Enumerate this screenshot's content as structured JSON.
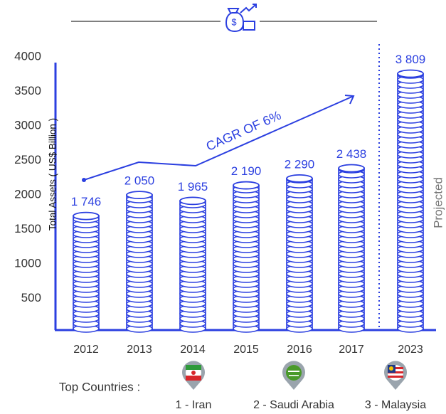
{
  "chart_data": {
    "type": "bar",
    "categories": [
      "2012",
      "2013",
      "2014",
      "2015",
      "2016",
      "2017",
      "2023"
    ],
    "values": [
      1746,
      2050,
      1965,
      2190,
      2290,
      2438,
      3809
    ],
    "value_labels": [
      "1 746",
      "2 050",
      "1 965",
      "2 190",
      "2 290",
      "2 438",
      "3 809"
    ],
    "color": "#2b3fe0",
    "ylim": [
      0,
      4000
    ],
    "yticks": [
      500,
      1000,
      1500,
      2000,
      2500,
      3000,
      3500,
      4000
    ],
    "y_label": "Total Assets ( US$ Billion )",
    "annotation": "CAGR OF 6%",
    "projected_label": "Projected"
  },
  "top_countries": {
    "label": "Top Countries :",
    "items": [
      "1 - Iran",
      "2 - Saudi Arabia",
      "3 - Malaysia"
    ]
  }
}
